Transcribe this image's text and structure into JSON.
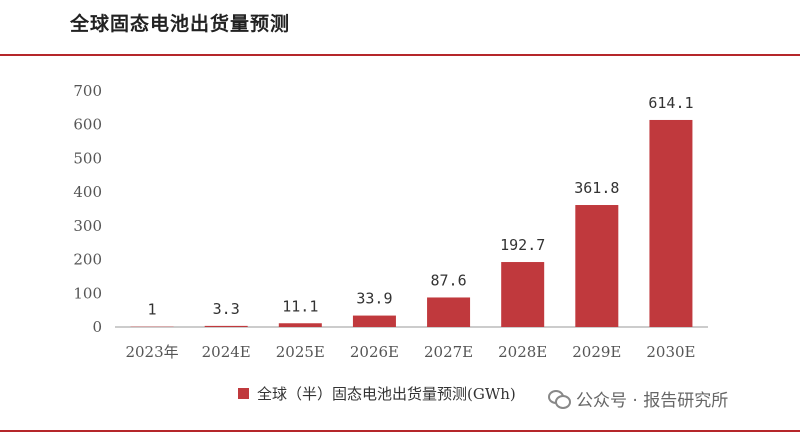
{
  "title": "全球固态电池出货量预测",
  "legend_label": "全球（半）固态电池出货量预测(GWh)",
  "watermark": "公众号 · 报告研究所",
  "colors": {
    "bar": "#c0393d",
    "rule": "#b5262a",
    "axis": "#999999"
  },
  "chart_data": {
    "type": "bar",
    "categories": [
      "2023年",
      "2024E",
      "2025E",
      "2026E",
      "2027E",
      "2028E",
      "2029E",
      "2030E"
    ],
    "values": [
      1,
      3.3,
      11.1,
      33.9,
      87.6,
      192.7,
      361.8,
      614.1
    ],
    "data_labels": [
      "1",
      "3.3",
      "11.1",
      "33.9",
      "87.6",
      "192.7",
      "361.8",
      "614.1"
    ],
    "ylim": [
      0,
      700
    ],
    "yticks": [
      0,
      100,
      200,
      300,
      400,
      500,
      600,
      700
    ],
    "series": [
      {
        "name": "全球（半）固态电池出货量预测(GWh)",
        "values": [
          1,
          3.3,
          11.1,
          33.9,
          87.6,
          192.7,
          361.8,
          614.1
        ]
      }
    ],
    "legend_position": "bottom",
    "grid": false
  }
}
